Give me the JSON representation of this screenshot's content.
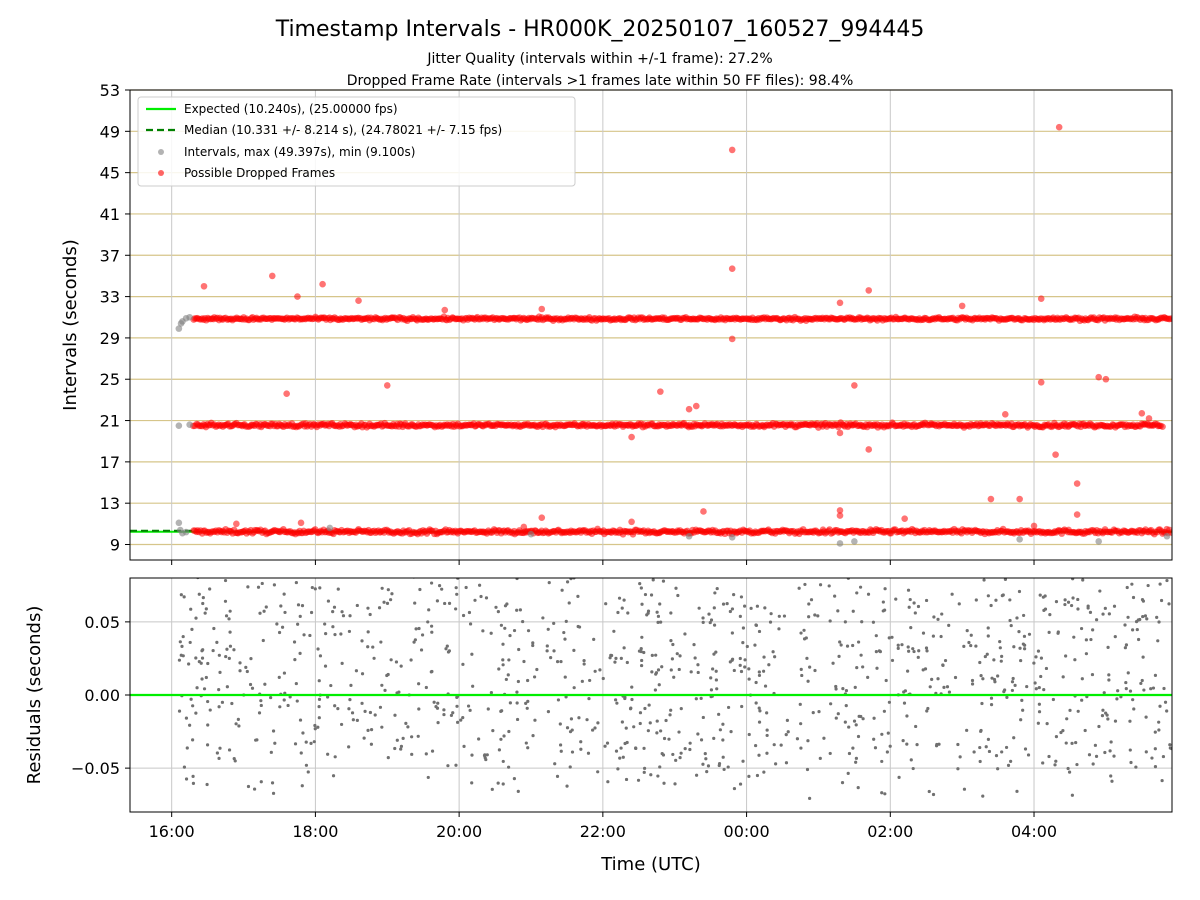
{
  "chart_data": [
    {
      "type": "scatter",
      "title": "Timestamp Intervals - HR000K_20250107_160527_994445",
      "subtitle_lines": [
        "Jitter Quality (intervals within +/-1 frame): 27.2%",
        "Dropped Frame Rate (intervals >1 frames late within 50 FF files): 98.4%"
      ],
      "xlabel": "",
      "ylabel": "Intervals (seconds)",
      "x_range_hours": [
        15.42,
        29.92
      ],
      "x_tick_hours": [
        16,
        18,
        20,
        22,
        24,
        26,
        28
      ],
      "ylim": [
        7.5,
        53
      ],
      "y_ticks": [
        9,
        13,
        17,
        21,
        25,
        29,
        33,
        37,
        41,
        45,
        49,
        53
      ],
      "grid": true,
      "hgrid_color": "#d6c58a",
      "legend_position": "upper-left",
      "legend": [
        {
          "label": "Expected (10.240s), (25.00000 fps)",
          "kind": "line",
          "color": "#00ee00",
          "style": "solid"
        },
        {
          "label": "Median (10.331 +/- 8.214 s), (24.78021 +/- 7.15 fps)",
          "kind": "line",
          "color": "#008000",
          "style": "dashed"
        },
        {
          "label": "Intervals, max (49.397s), min (9.100s)",
          "kind": "marker",
          "color": "#808080"
        },
        {
          "label": "Possible Dropped Frames",
          "kind": "marker",
          "color": "#ff0000"
        }
      ],
      "expected_value": 10.24,
      "median_value": 10.331,
      "bands": [
        {
          "center": 10.24,
          "jitter": 0.25,
          "x_start": 16.3,
          "x_end": 29.92,
          "color": "#ff0000"
        },
        {
          "center": 20.55,
          "jitter": 0.22,
          "x_start": 16.3,
          "x_end": 29.8,
          "color": "#ff0000"
        },
        {
          "center": 30.85,
          "jitter": 0.18,
          "x_start": 16.3,
          "x_end": 29.92,
          "color": "#ff0000"
        }
      ],
      "gray_points": [
        [
          16.1,
          29.9
        ],
        [
          16.13,
          30.4
        ],
        [
          16.15,
          30.6
        ],
        [
          16.2,
          30.9
        ],
        [
          16.25,
          31.0
        ],
        [
          16.1,
          20.5
        ],
        [
          16.25,
          20.6
        ],
        [
          16.1,
          11.1
        ],
        [
          16.12,
          10.4
        ],
        [
          16.15,
          10.1
        ],
        [
          16.2,
          10.2
        ],
        [
          23.2,
          9.8
        ],
        [
          23.8,
          9.7
        ],
        [
          25.3,
          9.1
        ],
        [
          25.5,
          9.3
        ],
        [
          27.8,
          9.5
        ],
        [
          28.9,
          9.3
        ],
        [
          29.85,
          9.8
        ],
        [
          18.2,
          10.6
        ],
        [
          21.0,
          10.0
        ]
      ],
      "red_points": [
        [
          16.45,
          34.0
        ],
        [
          17.4,
          35.0
        ],
        [
          17.75,
          33.0
        ],
        [
          18.1,
          34.2
        ],
        [
          18.6,
          32.6
        ],
        [
          19.8,
          31.7
        ],
        [
          21.15,
          31.8
        ],
        [
          17.6,
          23.6
        ],
        [
          19.0,
          24.4
        ],
        [
          22.4,
          19.4
        ],
        [
          22.8,
          23.8
        ],
        [
          23.2,
          22.1
        ],
        [
          23.3,
          22.4
        ],
        [
          23.8,
          47.2
        ],
        [
          23.8,
          35.7
        ],
        [
          23.8,
          28.9
        ],
        [
          25.3,
          32.4
        ],
        [
          25.5,
          24.4
        ],
        [
          25.7,
          33.6
        ],
        [
          25.7,
          18.2
        ],
        [
          25.3,
          19.8
        ],
        [
          27.0,
          32.1
        ],
        [
          27.6,
          21.6
        ],
        [
          28.1,
          24.7
        ],
        [
          28.1,
          32.8
        ],
        [
          28.3,
          17.7
        ],
        [
          28.35,
          49.4
        ],
        [
          28.6,
          14.9
        ],
        [
          28.9,
          25.2
        ],
        [
          29.0,
          25.0
        ],
        [
          29.5,
          21.7
        ],
        [
          29.6,
          21.2
        ],
        [
          16.9,
          11.0
        ],
        [
          17.8,
          11.1
        ],
        [
          21.15,
          11.6
        ],
        [
          22.4,
          11.2
        ],
        [
          23.4,
          12.2
        ],
        [
          25.3,
          12.3
        ],
        [
          25.3,
          11.8
        ],
        [
          26.2,
          11.5
        ],
        [
          27.4,
          13.4
        ],
        [
          27.8,
          13.4
        ],
        [
          28.0,
          10.8
        ],
        [
          28.6,
          11.9
        ],
        [
          20.9,
          10.7
        ]
      ]
    },
    {
      "type": "scatter",
      "xlabel": "Time (UTC)",
      "ylabel": "Residuals (seconds)",
      "x_range_hours": [
        15.42,
        29.92
      ],
      "x_tick_hours": [
        16,
        18,
        20,
        22,
        24,
        26,
        28
      ],
      "x_tick_labels": [
        "16:00",
        "18:00",
        "20:00",
        "22:00",
        "00:00",
        "02:00",
        "04:00"
      ],
      "ylim": [
        -0.08,
        0.08
      ],
      "y_ticks": [
        0.05,
        0.0,
        -0.05
      ],
      "y_tick_labels": [
        "0.05",
        "0.00",
        "−0.05"
      ],
      "grid": true,
      "reference_line": {
        "value": 0.0,
        "color": "#00ee00"
      },
      "point_color": "#707070",
      "point_count": 1100,
      "x_start": 16.1,
      "x_end": 29.92
    }
  ]
}
